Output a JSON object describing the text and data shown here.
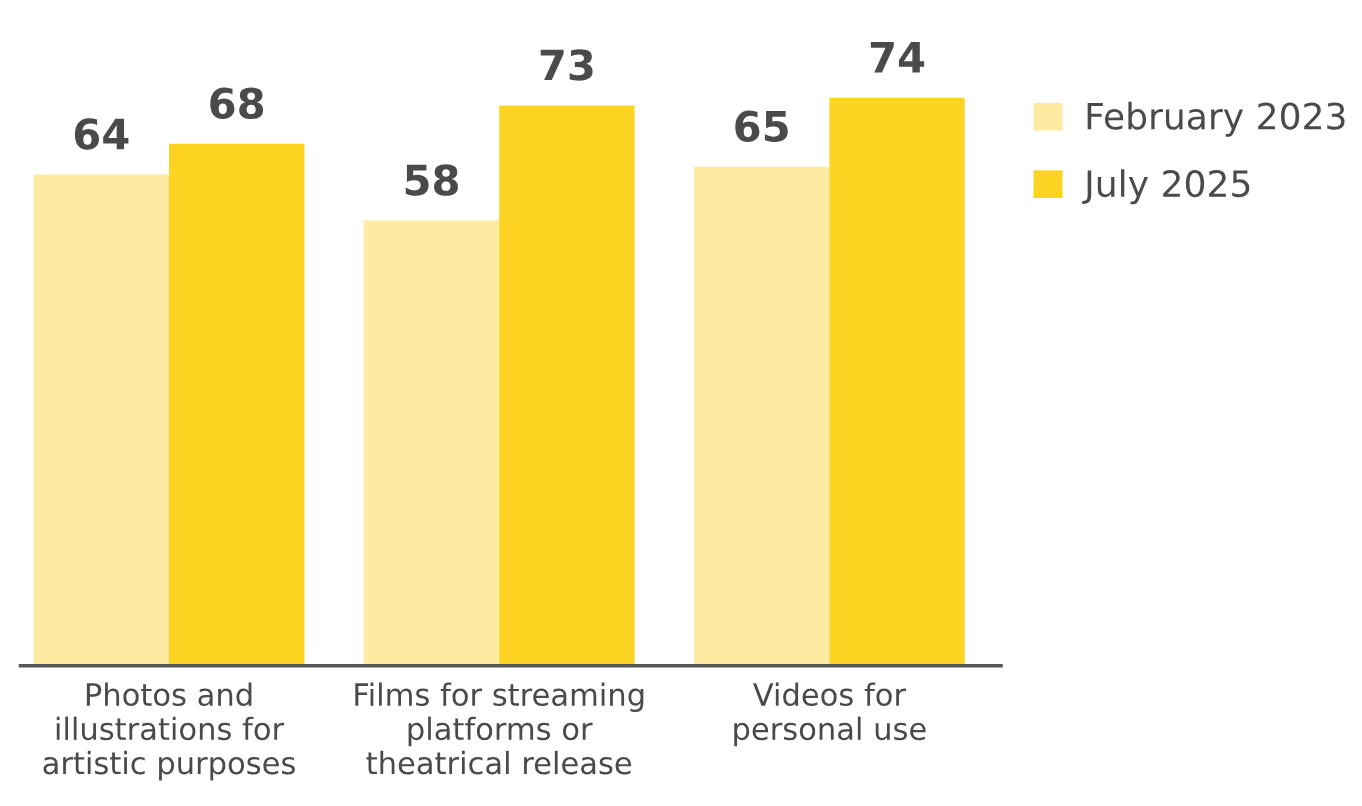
{
  "chart_data": {
    "type": "bar",
    "categories": [
      "Photos and\nillustrations for\nartistic purposes",
      "Films for streaming\nplatforms or\ntheatrical release",
      "Videos for\npersonal use"
    ],
    "series": [
      {
        "name": "February 2023",
        "color": "#fde9a0",
        "values": [
          64,
          58,
          65
        ]
      },
      {
        "name": "July 2025",
        "color": "#fdd422",
        "values": [
          68,
          73,
          74
        ]
      }
    ],
    "tick_labels": "x",
    "data_labels": true,
    "legend": "top right",
    "grid": false
  }
}
